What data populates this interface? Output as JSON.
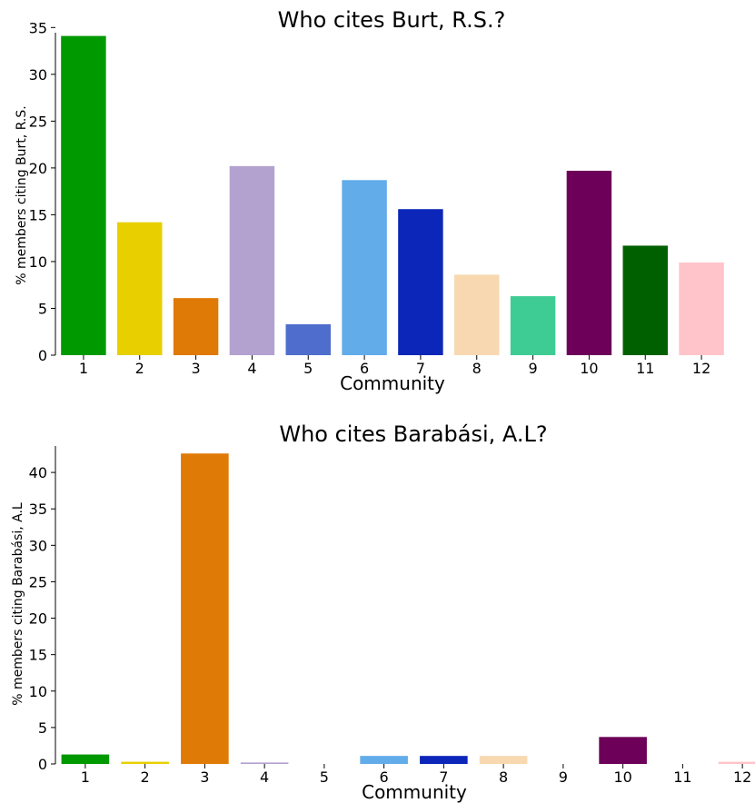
{
  "chart_data": [
    {
      "type": "bar",
      "title": "Who cites Burt, R.S.?",
      "xlabel": "Community",
      "ylabel": "% members citing Burt, R.S.",
      "categories": [
        "1",
        "2",
        "3",
        "4",
        "5",
        "6",
        "7",
        "8",
        "9",
        "10",
        "11",
        "12"
      ],
      "values": [
        34.1,
        14.2,
        6.1,
        20.2,
        3.3,
        18.7,
        15.6,
        8.6,
        6.3,
        19.7,
        11.7,
        9.9
      ],
      "colors": [
        "#009900",
        "#e8d000",
        "#e07a06",
        "#b3a1cf",
        "#4e6dcc",
        "#62acea",
        "#0b26b8",
        "#f8d8b0",
        "#3ecc94",
        "#6d0058",
        "#006000",
        "#ffc4ca"
      ],
      "ylim": [
        0,
        36
      ],
      "yticks": [
        0,
        5,
        10,
        15,
        20,
        25,
        30,
        35
      ],
      "grid": false
    },
    {
      "type": "bar",
      "title": "Who cites Barabási, A.L?",
      "xlabel": "Community",
      "ylabel": "% members citing Barabási, A.L",
      "categories": [
        "1",
        "2",
        "3",
        "4",
        "5",
        "6",
        "7",
        "8",
        "9",
        "10",
        "11",
        "12"
      ],
      "values": [
        1.3,
        0.3,
        42.6,
        0.2,
        0,
        1.1,
        1.1,
        1.1,
        0,
        3.7,
        0,
        0.3
      ],
      "colors": [
        "#009900",
        "#e8d000",
        "#e07a06",
        "#b3a1cf",
        "#4e6dcc",
        "#62acea",
        "#0b26b8",
        "#f8d8b0",
        "#3ecc94",
        "#6d0058",
        "#006000",
        "#ffc4ca"
      ],
      "ylim": [
        0,
        44.5
      ],
      "yticks": [
        0,
        5,
        10,
        15,
        20,
        25,
        30,
        35,
        40
      ],
      "grid": false
    }
  ]
}
